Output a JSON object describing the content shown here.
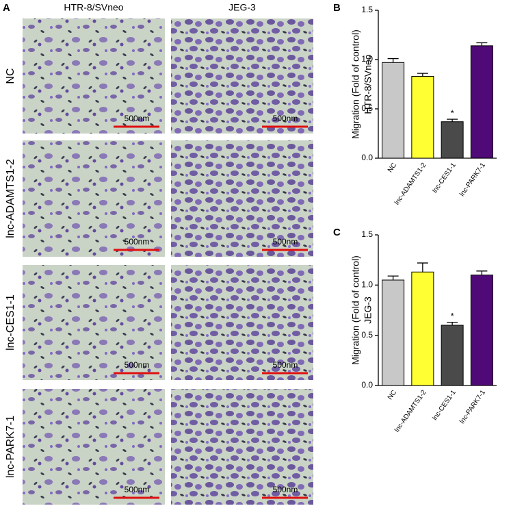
{
  "panel_a": {
    "label": "A",
    "columns": [
      "HTR-8/SVneo",
      "JEG-3"
    ],
    "rows": [
      "NC",
      "lnc-ADAMTS1-2",
      "lnc-CES1-1",
      "lnc-PARK7-1"
    ],
    "scale_bar": "500nm"
  },
  "chart_data": [
    {
      "type": "bar",
      "panel_label": "B",
      "ylabel": [
        "Migration (Fold of control)",
        "HTR-8/SVneo"
      ],
      "categories": [
        "NC",
        "lnc-ADAMTS1-2",
        "lnc-CES1-1",
        "lnc-PARK7-1"
      ],
      "values": [
        0.97,
        0.83,
        0.37,
        1.14
      ],
      "errors": [
        0.04,
        0.03,
        0.025,
        0.03
      ],
      "colors": [
        "#c8c8c8",
        "#ffff33",
        "#4a4a4a",
        "#500a78"
      ],
      "significance": [
        null,
        null,
        "*",
        null
      ],
      "ylim": [
        0,
        1.5
      ],
      "yticks": [
        {
          "value": 0,
          "label": "0.0"
        },
        0.5,
        {
          "value": 1,
          "label": "1.0"
        },
        1.5
      ]
    },
    {
      "type": "bar",
      "panel_label": "C",
      "ylabel": [
        "Migration (Fold of control)",
        "JEG-3"
      ],
      "categories": [
        "NC",
        "lnc-ADAMTS1-2",
        "lnc-CES1-1",
        "lnc-PARK7-1"
      ],
      "values": [
        1.05,
        1.13,
        0.6,
        1.1
      ],
      "errors": [
        0.04,
        0.09,
        0.03,
        0.04
      ],
      "colors": [
        "#c8c8c8",
        "#ffff33",
        "#4a4a4a",
        "#500a78"
      ],
      "significance": [
        null,
        null,
        "*",
        null
      ],
      "ylim": [
        0,
        1.5
      ],
      "yticks": [
        {
          "value": 0,
          "label": "0.0"
        },
        0.5,
        {
          "value": 1,
          "label": "1.0"
        },
        1.5
      ]
    }
  ]
}
